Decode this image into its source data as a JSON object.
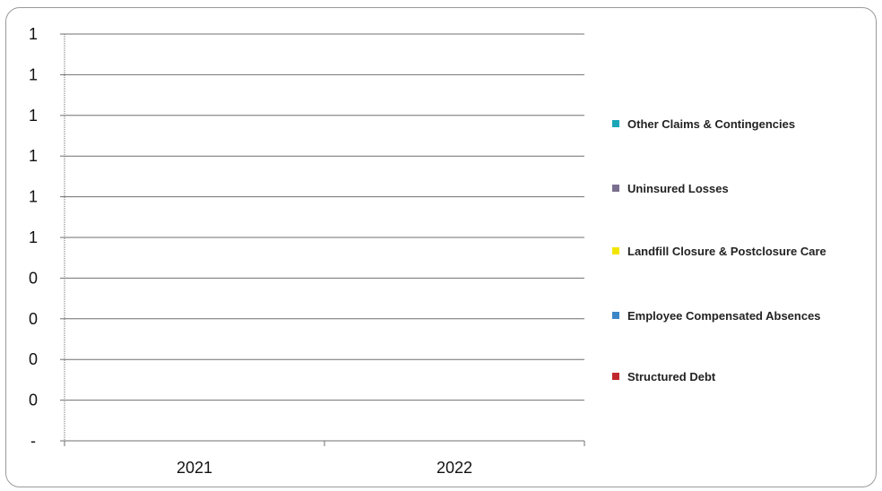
{
  "chart_data": {
    "type": "bar",
    "title": "",
    "categories": [
      "2021",
      "2022"
    ],
    "y_tick_labels": [
      "1",
      "1",
      "1",
      "1",
      "1",
      "1",
      "0",
      "0",
      "0",
      "0",
      "-"
    ],
    "series": [
      {
        "name": "Other Claims & Contingencies",
        "values": [
          0,
          0
        ],
        "color": "#1aa6b7"
      },
      {
        "name": "Uninsured Losses",
        "values": [
          0,
          0
        ],
        "color": "#7b6f8f"
      },
      {
        "name": "Landfill Closure & Postclosure Care",
        "values": [
          0,
          0
        ],
        "color": "#f2e600"
      },
      {
        "name": "Employee Compensated Absences",
        "values": [
          0,
          0
        ],
        "color": "#3b86c6"
      },
      {
        "name": "Structured Debt",
        "values": [
          0,
          0
        ],
        "color": "#c0282d"
      }
    ],
    "grid": true,
    "legend_position": "right"
  }
}
